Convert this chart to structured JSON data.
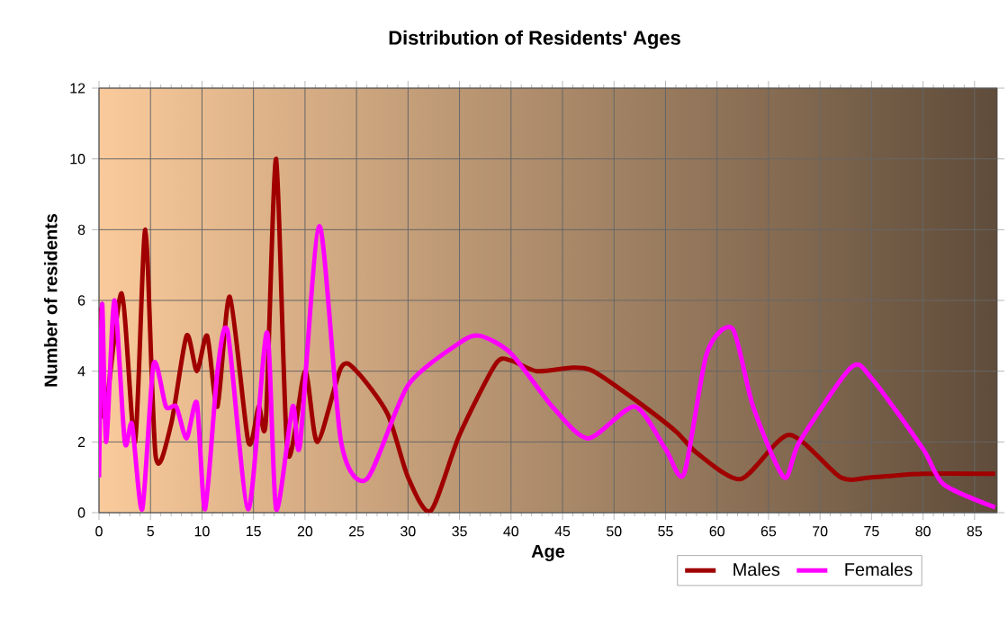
{
  "chart_data": {
    "type": "line",
    "title": "Distribution of Residents' Ages",
    "xlabel": "Age",
    "ylabel": "Number of residents",
    "xlim": [
      0,
      87.2
    ],
    "ylim": [
      0,
      12
    ],
    "xticks": [
      0,
      5,
      10,
      15,
      20,
      25,
      30,
      35,
      40,
      45,
      50,
      55,
      60,
      65,
      70,
      75,
      80,
      85
    ],
    "yticks": [
      0,
      2,
      4,
      6,
      8,
      10,
      12
    ],
    "grid": true,
    "legend": "bottom",
    "marker": "none",
    "line_style": "solid",
    "series": [
      {
        "name": "Males",
        "color": "#a00000",
        "x": [
          0,
          0.5,
          2.2,
          3.5,
          4.5,
          5.5,
          7,
          8.5,
          9.5,
          10.5,
          11.5,
          12.7,
          14.5,
          15.5,
          16.2,
          17.2,
          18.3,
          20,
          21.2,
          23.5,
          25,
          28,
          30,
          32.2,
          35,
          38.5,
          40,
          42.5,
          46,
          48,
          52,
          56,
          58,
          62.3,
          67,
          72,
          75,
          80,
          87
        ],
        "values": [
          5.8,
          2.7,
          6.2,
          2,
          8,
          1.6,
          2.5,
          5,
          4,
          5,
          3,
          6.1,
          2,
          3,
          2.6,
          10,
          1.7,
          4,
          2,
          4.1,
          4,
          2.8,
          1,
          0.05,
          2.2,
          4.2,
          4.3,
          4,
          4.1,
          4,
          3.2,
          2.3,
          1.7,
          0.95,
          2.2,
          1,
          1,
          1.1,
          1.1
        ]
      },
      {
        "name": "Females",
        "color": "#ff00ff",
        "x": [
          0,
          0.3,
          0.7,
          1.5,
          2.5,
          3.2,
          4.2,
          5.3,
          6.5,
          7.5,
          8.5,
          9.5,
          10.3,
          11.5,
          12.5,
          14.5,
          16.3,
          17.2,
          18.8,
          19.5,
          21.4,
          23.5,
          26,
          30,
          35,
          37,
          40,
          44,
          47.5,
          52,
          55,
          56.8,
          59,
          61.5,
          63.5,
          66.5,
          68,
          73,
          75,
          80,
          82,
          87
        ],
        "values": [
          1,
          5.9,
          2,
          6,
          2,
          2.5,
          0.1,
          4.2,
          3,
          3,
          2.1,
          3.1,
          0.1,
          4,
          5.1,
          0.1,
          5.1,
          0.1,
          3,
          1.9,
          8.1,
          2,
          0.95,
          3.6,
          4.8,
          5,
          4.5,
          3,
          2.1,
          3,
          1.8,
          1.1,
          4.5,
          5.2,
          3,
          1,
          2,
          4.1,
          3.8,
          1.8,
          0.8,
          0.15
        ]
      }
    ]
  }
}
